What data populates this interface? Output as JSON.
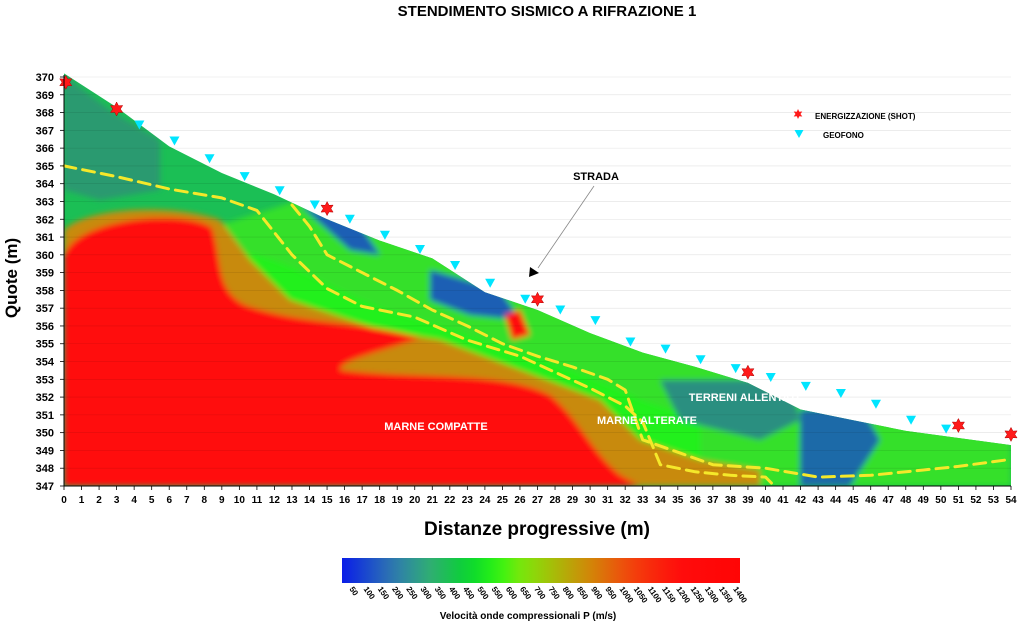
{
  "chart_data": {
    "type": "heatmap",
    "title": "STENDIMENTO SISMICO A RIFRAZIONE 1",
    "xlabel": "Distanze progressive (m)",
    "ylabel": "Quote (m)",
    "xlim": [
      0,
      54
    ],
    "ylim": [
      347,
      370
    ],
    "x_ticks": [
      0,
      1,
      2,
      3,
      4,
      5,
      6,
      7,
      8,
      9,
      10,
      11,
      12,
      13,
      14,
      15,
      16,
      17,
      18,
      19,
      20,
      21,
      22,
      23,
      24,
      25,
      26,
      27,
      28,
      29,
      30,
      31,
      32,
      33,
      34,
      35,
      36,
      37,
      38,
      39,
      40,
      41,
      42,
      43,
      44,
      45,
      46,
      47,
      48,
      49,
      50,
      51,
      52,
      53,
      54
    ],
    "y_ticks": [
      347,
      348,
      349,
      350,
      351,
      352,
      353,
      354,
      355,
      356,
      357,
      358,
      359,
      360,
      361,
      362,
      363,
      364,
      365,
      366,
      367,
      368,
      369,
      370
    ],
    "surface": {
      "x": [
        0,
        3,
        6,
        9,
        12,
        15,
        18,
        21,
        24,
        27,
        30,
        33,
        36,
        39,
        42,
        45,
        48,
        51,
        54
      ],
      "y": [
        370.2,
        368.3,
        366.1,
        364.6,
        363.4,
        362.0,
        360.8,
        359.8,
        357.9,
        356.9,
        355.6,
        354.5,
        353.7,
        352.8,
        351.3,
        350.7,
        350.1,
        349.7,
        349.3
      ]
    },
    "shots": {
      "name": "ENERGIZZAZIONE (SHOT)",
      "color": "#ff1a1a",
      "points": [
        [
          0.1,
          369.7
        ],
        [
          3.0,
          368.2
        ],
        [
          15.0,
          362.6
        ],
        [
          27.0,
          357.5
        ],
        [
          39.0,
          353.4
        ],
        [
          51.0,
          350.4
        ],
        [
          54.0,
          349.9
        ]
      ]
    },
    "geophones": {
      "name": "GEOFONO",
      "color": "#00e5ff",
      "points": [
        [
          4.3,
          367.3
        ],
        [
          6.3,
          366.4
        ],
        [
          8.3,
          365.4
        ],
        [
          10.3,
          364.4
        ],
        [
          12.3,
          363.6
        ],
        [
          14.3,
          362.8
        ],
        [
          16.3,
          362.0
        ],
        [
          18.3,
          361.1
        ],
        [
          20.3,
          360.3
        ],
        [
          22.3,
          359.4
        ],
        [
          24.3,
          358.4
        ],
        [
          26.3,
          357.5
        ],
        [
          28.3,
          356.9
        ],
        [
          30.3,
          356.3
        ],
        [
          32.3,
          355.1
        ],
        [
          34.3,
          354.7
        ],
        [
          36.3,
          354.1
        ],
        [
          38.3,
          353.6
        ],
        [
          40.3,
          353.1
        ],
        [
          42.3,
          352.6
        ],
        [
          44.3,
          352.2
        ],
        [
          46.3,
          351.6
        ],
        [
          48.3,
          350.7
        ],
        [
          50.3,
          350.2
        ]
      ]
    },
    "colorbar": {
      "label": "Velocità onde compressionali P (m/s)",
      "ticks": [
        50,
        100,
        150,
        200,
        250,
        300,
        350,
        400,
        450,
        500,
        550,
        600,
        650,
        700,
        750,
        800,
        850,
        900,
        950,
        1000,
        1050,
        1100,
        1150,
        1200,
        1250,
        1300,
        1350,
        1400
      ],
      "colors": [
        "#0a1de8",
        "#1437d8",
        "#1e52c8",
        "#2a6cb6",
        "#2f84a4",
        "#2f9a8c",
        "#2fae72",
        "#1fbd58",
        "#10cc3e",
        "#10dc2a",
        "#22ec1a",
        "#44f210",
        "#73e80c",
        "#8cd80a",
        "#a0c408",
        "#b2ae08",
        "#c49808",
        "#d48208",
        "#e06a0a",
        "#ec520c",
        "#f43c0c",
        "#f82a0c",
        "#fc1a0c",
        "#ff0d0c",
        "#ff0a0a",
        "#ff0808",
        "#ff0606",
        "#ff0505"
      ]
    },
    "interfaces": [
      {
        "x": [
          0,
          3,
          6,
          9,
          11,
          13,
          15,
          17,
          20,
          23,
          26,
          28,
          30,
          32,
          33,
          34,
          36,
          38,
          40,
          40.5
        ],
        "y": [
          365.0,
          364.4,
          363.7,
          363.2,
          362.5,
          360.0,
          358.1,
          357.1,
          356.5,
          355.2,
          354.3,
          353.4,
          352.5,
          351.5,
          350.6,
          348.2,
          347.8,
          347.6,
          347.5,
          347.0
        ]
      },
      {
        "x": [
          13,
          14,
          15,
          17,
          19,
          21,
          23,
          25,
          27,
          29,
          31,
          32,
          33,
          35,
          37,
          40,
          43,
          46,
          49,
          51,
          54
        ],
        "y": [
          362.8,
          361.6,
          360.0,
          359.0,
          358.0,
          356.9,
          356.0,
          355.0,
          354.3,
          353.7,
          353.0,
          352.4,
          349.6,
          348.9,
          348.2,
          348.0,
          347.5,
          347.6,
          347.9,
          348.1,
          348.5
        ]
      }
    ],
    "annotations": [
      "STRADA",
      "TERRENI ALLENTATI",
      "MARNE ALTERATE",
      "MARNE COMPATTE"
    ],
    "legend_position": "top-right"
  }
}
